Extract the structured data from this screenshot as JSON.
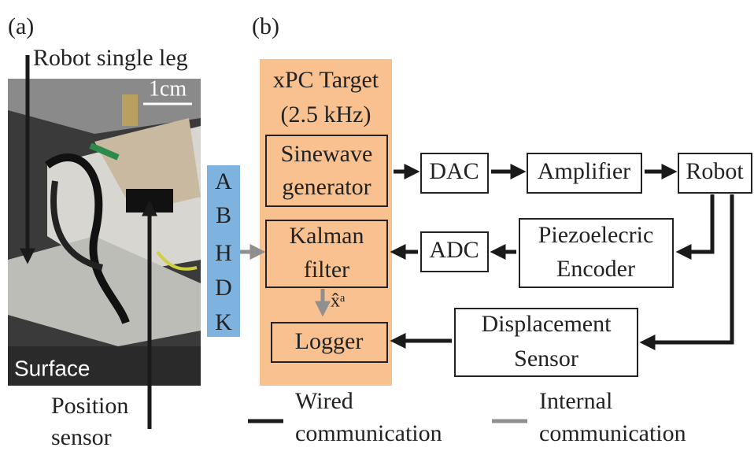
{
  "panels": {
    "a": "(a)",
    "b": "(b)"
  },
  "photo": {
    "leg_label": "Robot single leg",
    "scale": "1cm",
    "surface": "Surface",
    "sensor_label": [
      "Position",
      "sensor"
    ]
  },
  "signals": [
    "A",
    "B",
    "H",
    "D",
    "K"
  ],
  "target": {
    "title": [
      "xPC Target",
      "(2.5 kHz)"
    ],
    "sinewave": [
      "Sinewave",
      "generator"
    ],
    "kalman": [
      "Kalman",
      "filter"
    ],
    "estimate": "x̂ᵃ",
    "logger": "Logger"
  },
  "blocks": {
    "dac": "DAC",
    "amplifier": "Amplifier",
    "robot": "Robot",
    "adc": "ADC",
    "encoder": [
      "Piezoelecric",
      "Encoder"
    ],
    "displacement": [
      "Displacement",
      "Sensor"
    ]
  },
  "legend": {
    "wired": [
      "Wired",
      "communication"
    ],
    "internal": [
      "Internal",
      "communication"
    ]
  }
}
